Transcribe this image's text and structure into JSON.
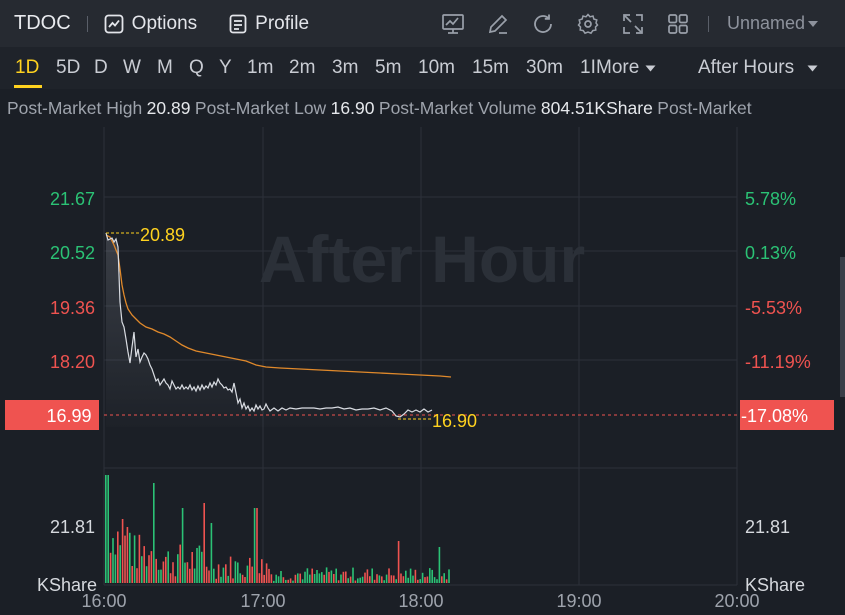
{
  "toolbar": {
    "ticker": "TDOC",
    "options_label": "Options",
    "profile_label": "Profile",
    "layout_name": "Unnamed",
    "tools": [
      "chart-template-icon",
      "draw-pen-icon",
      "refresh-icon",
      "settings-gear-icon",
      "fullscreen-icon",
      "grid-layout-icon"
    ]
  },
  "periods": {
    "items": [
      "1D",
      "5D",
      "D",
      "W",
      "M",
      "Q",
      "Y",
      "1m",
      "2m",
      "3m",
      "5m",
      "10m",
      "15m",
      "30m",
      "1I",
      "More"
    ],
    "active": "1D",
    "session_label": "After Hours"
  },
  "info": {
    "high_label": "Post-Market High",
    "high_value": "20.89",
    "low_label": "Post-Market Low",
    "low_value": "16.90",
    "volume_label": "Post-Market Volume",
    "volume_value": "804.51KShare",
    "trailing_label": "Post-Market"
  },
  "chart_data": {
    "type": "line",
    "watermark": "After Hour",
    "x_ticks": [
      "16:00",
      "17:00",
      "18:00",
      "19:00",
      "20:00"
    ],
    "price_ticks": [
      "21.67",
      "20.52",
      "19.36",
      "18.20"
    ],
    "price_tick_colors": [
      "#2bc275",
      "#2bc275",
      "#ef5350",
      "#ef5350"
    ],
    "pct_ticks": [
      "5.78%",
      "0.13%",
      "-5.53%",
      "-11.19%"
    ],
    "pct_tick_colors": [
      "#2bc275",
      "#2bc275",
      "#ef5350",
      "#ef5350"
    ],
    "current_price": "16.99",
    "current_pct": "-17.08%",
    "high_marker": "20.89",
    "low_marker": "16.90",
    "volume_tick": "21.81",
    "volume_unit": "KShare",
    "colors": {
      "price": "#d9dce2",
      "avg": "#e0892b",
      "up": "#2bc275",
      "down": "#ef5350",
      "marker": "#ffd21f"
    }
  }
}
